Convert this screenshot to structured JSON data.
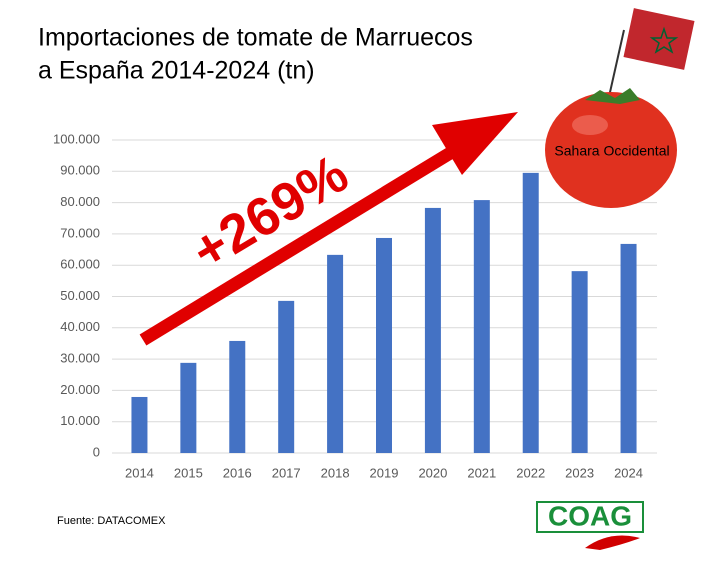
{
  "chart_data": {
    "type": "bar",
    "title": [
      "Importaciones de tomate de Marruecos",
      "a España 2014-2024 (tn)"
    ],
    "categories": [
      "2014",
      "2015",
      "2016",
      "2017",
      "2018",
      "2019",
      "2020",
      "2021",
      "2022",
      "2023",
      "2024"
    ],
    "values": [
      17900,
      28800,
      35800,
      48600,
      63300,
      68700,
      78300,
      80800,
      89500,
      58100,
      66800
    ],
    "color": "#4472c4",
    "ylim": [
      0,
      100000
    ],
    "yticks": [
      0,
      {
        "value": 10000,
        "label": "10.000"
      },
      {
        "value": 20000,
        "label": "20.000"
      },
      {
        "value": 30000,
        "label": "30.000"
      },
      {
        "value": 40000,
        "label": "40.000"
      },
      {
        "value": 50000,
        "label": "50.000"
      },
      {
        "value": 60000,
        "label": "60.000"
      },
      {
        "value": 70000,
        "label": "70.000"
      },
      {
        "value": 80000,
        "label": "80.000"
      },
      {
        "value": 90000,
        "label": "90.000"
      },
      {
        "value": 100000,
        "label": "100.000"
      }
    ],
    "grid": true,
    "annotations": [
      "+269%",
      "Sahara Occidental"
    ],
    "source": "Fuente: DATACOMEX",
    "logo": "COAG"
  }
}
